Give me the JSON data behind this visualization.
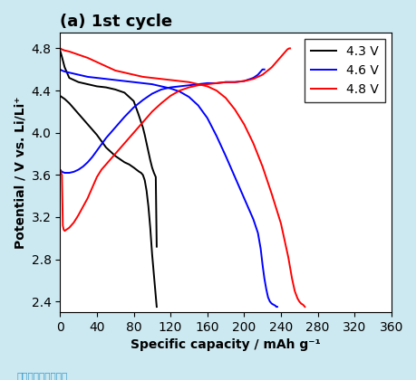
{
  "title": "(a) 1st cycle",
  "xlabel": "Specific capacity / mAh g⁻¹",
  "ylabel": "Potential / V vs. Li/Li⁺",
  "xlim": [
    0,
    360
  ],
  "ylim": [
    2.3,
    4.95
  ],
  "xticks": [
    0,
    40,
    80,
    120,
    160,
    200,
    240,
    280,
    320,
    360
  ],
  "yticks": [
    2.4,
    2.8,
    3.2,
    3.6,
    4.0,
    4.4,
    4.8
  ],
  "legend_labels": [
    "4.3 V",
    "4.6 V",
    "4.8 V"
  ],
  "legend_colors": [
    "black",
    "blue",
    "red"
  ],
  "fig_bg": "#cce8f0",
  "ax_bg": "#ffffff",
  "watermark": "图片来源见参考文献",
  "curves": {
    "black_charge": {
      "x": [
        0,
        5,
        10,
        15,
        20,
        25,
        30,
        35,
        40,
        45,
        50,
        55,
        60,
        65,
        70,
        75,
        80,
        83,
        86,
        88,
        90,
        92,
        94,
        96,
        98,
        100,
        102,
        104,
        105
      ],
      "y": [
        4.35,
        4.32,
        4.28,
        4.23,
        4.18,
        4.13,
        4.08,
        4.03,
        3.98,
        3.92,
        3.86,
        3.82,
        3.78,
        3.75,
        3.72,
        3.7,
        3.67,
        3.65,
        3.63,
        3.62,
        3.6,
        3.55,
        3.45,
        3.3,
        3.1,
        2.85,
        2.65,
        2.45,
        2.35
      ]
    },
    "black_discharge": {
      "x": [
        0,
        2,
        5,
        10,
        20,
        30,
        40,
        50,
        60,
        70,
        80,
        85,
        90,
        92,
        94,
        96,
        98,
        100,
        102,
        104,
        105
      ],
      "y": [
        4.78,
        4.72,
        4.62,
        4.52,
        4.48,
        4.46,
        4.44,
        4.43,
        4.41,
        4.38,
        4.3,
        4.18,
        4.05,
        3.98,
        3.9,
        3.82,
        3.74,
        3.67,
        3.62,
        3.58,
        2.92
      ]
    },
    "blue_charge": {
      "x": [
        0,
        2,
        5,
        10,
        15,
        20,
        25,
        30,
        35,
        40,
        45,
        50,
        60,
        70,
        80,
        90,
        100,
        110,
        120,
        130,
        140,
        150,
        160,
        170,
        180,
        190,
        200,
        210,
        215,
        218,
        220,
        222
      ],
      "y": [
        3.65,
        3.63,
        3.62,
        3.62,
        3.63,
        3.65,
        3.68,
        3.72,
        3.77,
        3.83,
        3.89,
        3.95,
        4.05,
        4.15,
        4.24,
        4.31,
        4.37,
        4.41,
        4.43,
        4.44,
        4.45,
        4.46,
        4.47,
        4.47,
        4.48,
        4.48,
        4.49,
        4.52,
        4.55,
        4.58,
        4.6,
        4.6
      ]
    },
    "blue_discharge": {
      "x": [
        0,
        2,
        5,
        10,
        20,
        30,
        40,
        50,
        60,
        70,
        80,
        90,
        100,
        110,
        120,
        130,
        140,
        150,
        160,
        170,
        180,
        190,
        200,
        210,
        215,
        218,
        220,
        222,
        224,
        226,
        228,
        230,
        232,
        234,
        235,
        236
      ],
      "y": [
        4.6,
        4.59,
        4.58,
        4.57,
        4.55,
        4.53,
        4.52,
        4.51,
        4.5,
        4.49,
        4.48,
        4.47,
        4.46,
        4.44,
        4.42,
        4.39,
        4.34,
        4.26,
        4.14,
        3.97,
        3.78,
        3.58,
        3.38,
        3.18,
        3.05,
        2.9,
        2.75,
        2.62,
        2.52,
        2.44,
        2.4,
        2.38,
        2.37,
        2.36,
        2.35,
        2.35
      ]
    },
    "red_charge": {
      "x": [
        0,
        1,
        2,
        3,
        4,
        5,
        10,
        15,
        20,
        25,
        30,
        35,
        40,
        45,
        50,
        60,
        70,
        80,
        90,
        100,
        110,
        120,
        130,
        140,
        150,
        160,
        170,
        180,
        190,
        200,
        210,
        220,
        230,
        235,
        240,
        244,
        247,
        249,
        250
      ],
      "y": [
        3.65,
        3.62,
        3.6,
        3.12,
        3.08,
        3.07,
        3.1,
        3.15,
        3.22,
        3.3,
        3.38,
        3.48,
        3.58,
        3.65,
        3.7,
        3.8,
        3.9,
        4.0,
        4.1,
        4.2,
        4.28,
        4.35,
        4.4,
        4.43,
        4.45,
        4.46,
        4.47,
        4.48,
        4.48,
        4.49,
        4.51,
        4.55,
        4.62,
        4.67,
        4.72,
        4.76,
        4.79,
        4.8,
        4.8
      ]
    },
    "red_discharge": {
      "x": [
        0,
        2,
        5,
        10,
        20,
        30,
        40,
        50,
        60,
        70,
        80,
        90,
        100,
        110,
        120,
        130,
        140,
        150,
        160,
        170,
        180,
        190,
        200,
        210,
        220,
        230,
        240,
        248,
        252,
        255,
        258,
        260,
        262,
        264,
        265,
        266
      ],
      "y": [
        4.8,
        4.79,
        4.78,
        4.77,
        4.74,
        4.71,
        4.67,
        4.63,
        4.59,
        4.57,
        4.55,
        4.53,
        4.52,
        4.51,
        4.5,
        4.49,
        4.48,
        4.46,
        4.44,
        4.4,
        4.33,
        4.22,
        4.08,
        3.9,
        3.68,
        3.42,
        3.14,
        2.82,
        2.62,
        2.5,
        2.43,
        2.4,
        2.38,
        2.37,
        2.36,
        2.35
      ]
    }
  }
}
